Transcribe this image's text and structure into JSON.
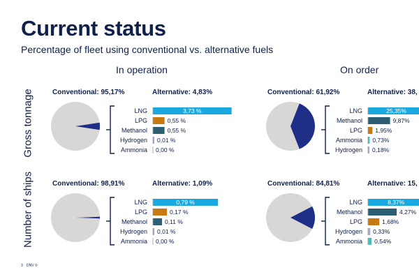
{
  "title": "Current status",
  "subtitle": "Percentage of fleet using conventional vs. alternative fuels",
  "columns": [
    "In operation",
    "On order"
  ],
  "rows": [
    "Gross tonnage",
    "Number of ships"
  ],
  "footer": {
    "page": "3",
    "brand": "DNV ©"
  },
  "colors": {
    "pie_conventional": "#d9d7d5",
    "pie_alternative": "#1f2f87",
    "LNG": "#19a9e0",
    "LPG": "#c87912",
    "Methanol": "#2c5f73",
    "Hydrogen": "#a7a7d6",
    "Ammonia": "#3fc2c2",
    "label_bg_text": "#ffffff"
  },
  "chart_data": [
    {
      "type": "pie+bar",
      "row": "Gross tonnage",
      "column": "In operation",
      "conventional_label": "Conventional: 95,17%",
      "alternative_label": "Alternative: 4,83%",
      "pie": {
        "conventional": 95.17,
        "alternative": 4.83
      },
      "categories": [
        "LNG",
        "LPG",
        "Methanol",
        "Hydrogen",
        "Ammonia"
      ],
      "values": [
        3.73,
        0.55,
        0.55,
        0.01,
        0.0
      ],
      "value_labels": [
        "3,73 %",
        "0,55 %",
        "0,55 %",
        "0,01 %",
        "0,00 %"
      ]
    },
    {
      "type": "pie+bar",
      "row": "Gross tonnage",
      "column": "On order",
      "conventional_label": "Conventional: 61,92%",
      "alternative_label": "Alternative: 38,",
      "pie": {
        "conventional": 61.92,
        "alternative": 38.08
      },
      "categories": [
        "LNG",
        "Methanol",
        "LPG",
        "Ammonia",
        "Hydrogen"
      ],
      "values": [
        25.35,
        9.87,
        1.95,
        0.73,
        0.18
      ],
      "value_labels": [
        "25,35%",
        "9,87%",
        "1,95%",
        "0,73%",
        "0,18%"
      ]
    },
    {
      "type": "pie+bar",
      "row": "Number of ships",
      "column": "In operation",
      "conventional_label": "Conventional: 98,91%",
      "alternative_label": "Alternative: 1,09%",
      "pie": {
        "conventional": 98.91,
        "alternative": 1.09
      },
      "categories": [
        "LNG",
        "LPG",
        "Methanol",
        "Hydrogen",
        "Ammonia"
      ],
      "values": [
        0.79,
        0.17,
        0.11,
        0.01,
        0.0
      ],
      "value_labels": [
        "0,79 %",
        "0,17 %",
        "0,11 %",
        "0,01 %",
        "0,00 %"
      ]
    },
    {
      "type": "pie+bar",
      "row": "Number of ships",
      "column": "On order",
      "conventional_label": "Conventional: 84,81%",
      "alternative_label": "Alternative: 15,",
      "pie": {
        "conventional": 84.81,
        "alternative": 15.19
      },
      "categories": [
        "LNG",
        "Methanol",
        "LPG",
        "Hydrogen",
        "Ammonia"
      ],
      "values": [
        8.37,
        4.27,
        1.68,
        0.33,
        0.54
      ],
      "value_labels": [
        "8,37%",
        "4,27%",
        "1,68%",
        "0,33%",
        "0,54%"
      ]
    }
  ]
}
